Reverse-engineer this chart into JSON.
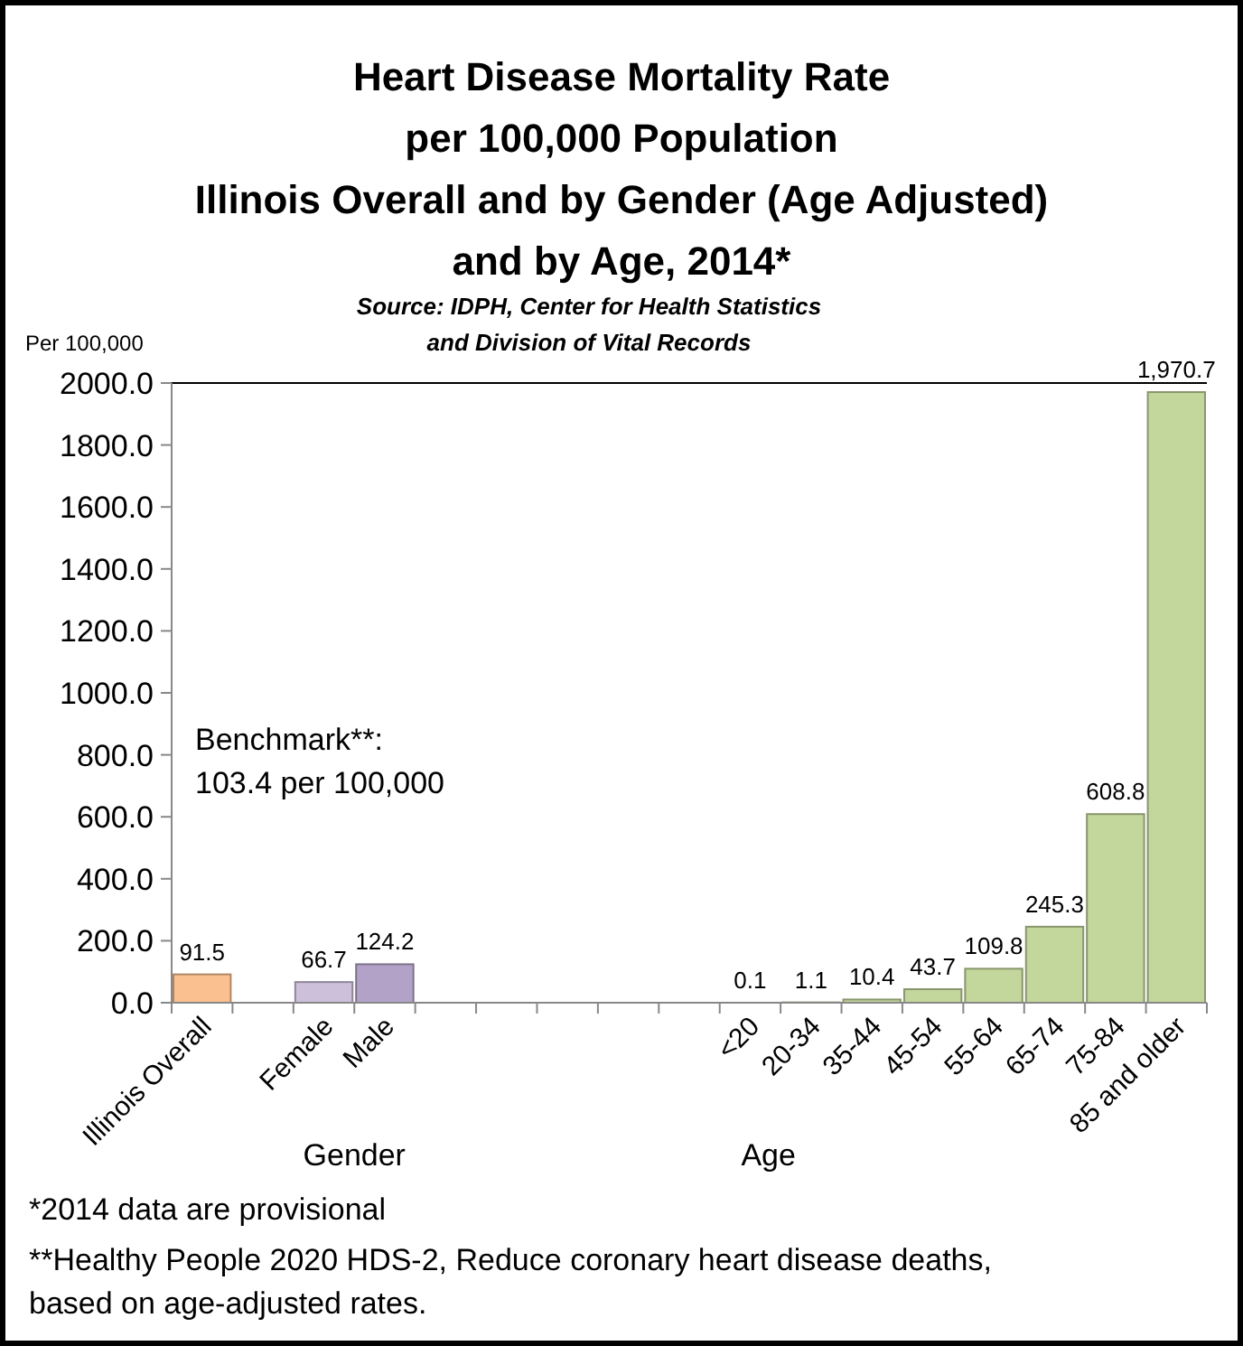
{
  "chart_data": {
    "type": "bar",
    "title": "Heart Disease Mortality Rate\nper 100,000 Population\nIllinois Overall and by Gender (Age Adjusted)\nand by Age, 2014*",
    "subtitle": "Source: IDPH, Center for Health Statistics\nand Division of Vital Records",
    "ylabel": "Per 100,000",
    "categories": [
      "Illinois Overall",
      null,
      "Female",
      "Male",
      null,
      null,
      null,
      null,
      null,
      "<20",
      "20-34",
      "35-44",
      "45-54",
      "55-64",
      "65-74",
      "75-84",
      "85 and older"
    ],
    "values": [
      91.5,
      null,
      66.7,
      124.2,
      null,
      null,
      null,
      null,
      null,
      0.1,
      1.1,
      10.4,
      43.7,
      109.8,
      245.3,
      608.8,
      1970.7
    ],
    "colors": [
      "#fac090",
      null,
      "#ccc0da",
      "#b3a2c7",
      null,
      null,
      null,
      null,
      null,
      "#c3d69b",
      "#c3d69b",
      "#c3d69b",
      "#c3d69b",
      "#c3d69b",
      "#c3d69b",
      "#c3d69b",
      "#c3d69b"
    ],
    "value_labels": [
      "91.5",
      null,
      "66.7",
      "124.2",
      null,
      null,
      null,
      null,
      null,
      "0.1",
      "1.1",
      "10.4",
      "43.7",
      "109.8",
      "245.3",
      "608.8",
      "1,970.7"
    ],
    "ylim": [
      0,
      2000
    ],
    "yticks": [
      {
        "value": 0,
        "label": "0.0"
      },
      {
        "value": 200,
        "label": "200.0"
      },
      {
        "value": 400,
        "label": "400.0"
      },
      {
        "value": 600,
        "label": "600.0"
      },
      {
        "value": 800,
        "label": "800.0"
      },
      {
        "value": 1000,
        "label": "1000.0"
      },
      {
        "value": 1200,
        "label": "1200.0"
      },
      {
        "value": 1400,
        "label": "1400.0"
      },
      {
        "value": 1600,
        "label": "1600.0"
      },
      {
        "value": 1800,
        "label": "1800.0"
      },
      {
        "value": 2000,
        "label": "2000.0"
      }
    ],
    "grid": false,
    "annotations": [
      "Benchmark**:\n103.4 per 100,000",
      "Gender",
      "Age",
      "*2014 data are provisional",
      "**Healthy People 2020 HDS-2, Reduce coronary heart disease deaths,\nbased on age-adjusted rates."
    ]
  }
}
